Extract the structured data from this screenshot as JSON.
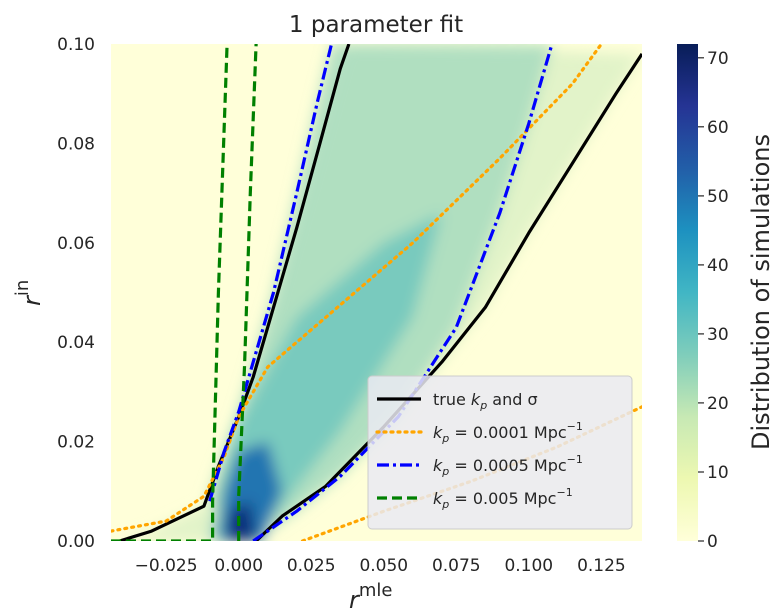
{
  "chart_data": {
    "type": "heatmap",
    "title": "1 parameter fit",
    "xlabel": "r_*^{mle}",
    "ylabel": "r_*^{in}",
    "xlabel_parts": {
      "main": "r",
      "sup": "mle",
      "sub": "*"
    },
    "ylabel_parts": {
      "main": "r",
      "sup": "in",
      "sub": "*"
    },
    "xlim": [
      -0.044,
      0.139
    ],
    "ylim": [
      0.0,
      0.1
    ],
    "x_ticks": [
      -0.025,
      0.0,
      0.025,
      0.05,
      0.075,
      0.1,
      0.125
    ],
    "x_tick_labels": [
      "−0.025",
      "0.000",
      "0.025",
      "0.050",
      "0.075",
      "0.100",
      "0.125"
    ],
    "y_ticks": [
      0.0,
      0.02,
      0.04,
      0.06,
      0.08,
      0.1
    ],
    "y_tick_labels": [
      "0.00",
      "0.02",
      "0.04",
      "0.06",
      "0.08",
      "0.10"
    ],
    "colorbar": {
      "label": "Distribution of simulations",
      "range": [
        0,
        72
      ],
      "ticks": [
        0,
        10,
        20,
        30,
        40,
        50,
        60,
        70
      ],
      "tick_labels": [
        "0",
        "10",
        "20",
        "30",
        "40",
        "50",
        "60",
        "70"
      ],
      "colormap": "YlGnBu"
    },
    "legend_position": "lower-right",
    "series": [
      {
        "name": "true k_p and σ",
        "color": "#000000",
        "style": "solid",
        "left": [
          [
            -0.041,
            0.0
          ],
          [
            -0.03,
            0.002
          ],
          [
            -0.012,
            0.007
          ],
          [
            -0.007,
            0.015
          ],
          [
            0.0,
            0.025
          ],
          [
            0.005,
            0.033
          ],
          [
            0.012,
            0.047
          ],
          [
            0.02,
            0.063
          ],
          [
            0.028,
            0.08
          ],
          [
            0.035,
            0.095
          ],
          [
            0.038,
            0.1
          ]
        ],
        "right": [
          [
            0.006,
            0.0
          ],
          [
            0.015,
            0.005
          ],
          [
            0.03,
            0.011
          ],
          [
            0.05,
            0.023
          ],
          [
            0.07,
            0.036
          ],
          [
            0.085,
            0.047
          ],
          [
            0.1,
            0.062
          ],
          [
            0.115,
            0.076
          ],
          [
            0.13,
            0.09
          ],
          [
            0.139,
            0.098
          ]
        ]
      },
      {
        "name": "k_p = 0.0001 Mpc^{-1}",
        "color": "#ffa500",
        "style": "dotted",
        "left": [
          [
            -0.044,
            0.002
          ],
          [
            -0.025,
            0.004
          ],
          [
            -0.012,
            0.009
          ],
          [
            -0.005,
            0.017
          ],
          [
            0.0,
            0.025
          ],
          [
            0.01,
            0.035
          ],
          [
            0.03,
            0.045
          ],
          [
            0.06,
            0.06
          ],
          [
            0.09,
            0.077
          ],
          [
            0.115,
            0.092
          ],
          [
            0.125,
            0.1
          ]
        ],
        "right": [
          [
            0.022,
            0.0
          ],
          [
            0.05,
            0.006
          ],
          [
            0.08,
            0.012
          ],
          [
            0.11,
            0.019
          ],
          [
            0.139,
            0.027
          ]
        ]
      },
      {
        "name": "k_p = 0.0005 Mpc^{-1}",
        "color": "#0000ff",
        "style": "dashdot",
        "left": [
          [
            -0.01,
            0.008
          ],
          [
            -0.005,
            0.018
          ],
          [
            0.0,
            0.026
          ],
          [
            0.005,
            0.036
          ],
          [
            0.012,
            0.05
          ],
          [
            0.02,
            0.07
          ],
          [
            0.027,
            0.088
          ],
          [
            0.032,
            0.1
          ]
        ],
        "right": [
          [
            0.005,
            0.0
          ],
          [
            0.02,
            0.006
          ],
          [
            0.035,
            0.013
          ],
          [
            0.055,
            0.025
          ],
          [
            0.075,
            0.043
          ],
          [
            0.09,
            0.066
          ],
          [
            0.1,
            0.084
          ],
          [
            0.108,
            0.1
          ]
        ]
      },
      {
        "name": "k_p = 0.005 Mpc^{-1}",
        "color": "#008000",
        "style": "dashed",
        "left": [
          [
            -0.044,
            0.0
          ],
          [
            -0.009,
            0.0
          ],
          [
            -0.009,
            0.008
          ],
          [
            -0.007,
            0.05
          ],
          [
            -0.004,
            0.1
          ]
        ],
        "right": [
          [
            0.0,
            0.0
          ],
          [
            0.0,
            0.009
          ],
          [
            0.002,
            0.035
          ],
          [
            0.004,
            0.07
          ],
          [
            0.006,
            0.1
          ]
        ]
      }
    ],
    "legend": [
      {
        "label": "true",
        "math": "k",
        "sub": "p",
        "tail": " and σ",
        "color": "#000000",
        "style": "solid"
      },
      {
        "label": "",
        "math": "k",
        "sub": "p",
        "tail": " = 0.0001 Mpc",
        "sup": "−1",
        "color": "#ffa500",
        "style": "dotted"
      },
      {
        "label": "",
        "math": "k",
        "sub": "p",
        "tail": " = 0.0005 Mpc",
        "sup": "−1",
        "color": "#0000ff",
        "style": "dashdot"
      },
      {
        "label": "",
        "math": "k",
        "sub": "p",
        "tail": " = 0.005 Mpc",
        "sup": "−1",
        "color": "#008000",
        "style": "dashed"
      }
    ]
  }
}
